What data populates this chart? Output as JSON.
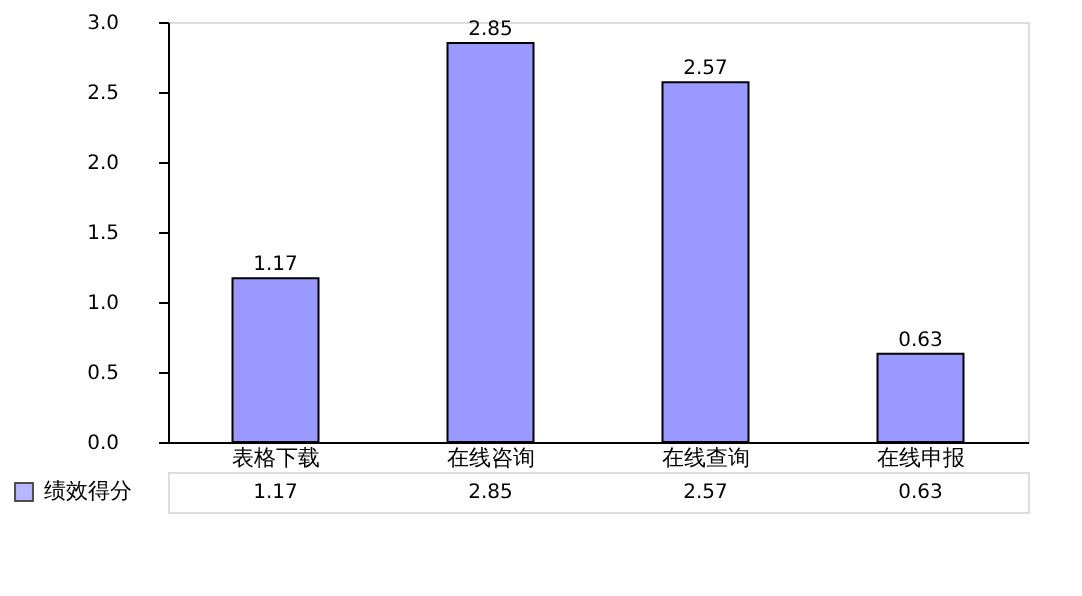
{
  "chart_data": {
    "type": "bar",
    "categories": [
      "表格下载",
      "在线咨询",
      "在线查询",
      "在线申报"
    ],
    "series": [
      {
        "name": "绩效得分",
        "color": "#9999ff",
        "values": [
          1.17,
          2.85,
          2.57,
          0.63
        ],
        "value_labels": [
          "1.17",
          "2.85",
          "2.57",
          "0.63"
        ]
      }
    ],
    "ylim": [
      0,
      3.0
    ],
    "yticks": [
      {
        "value": 0,
        "label": "0.0"
      },
      0.5,
      {
        "value": 1,
        "label": "1.0"
      },
      1.5,
      {
        "value": 2,
        "label": "2.0"
      },
      2.5,
      {
        "value": 3,
        "label": "3.0"
      }
    ],
    "data_labels": true,
    "annotations": [
      "1.17",
      "2.85",
      "2.57",
      "0.63"
    ],
    "grid": false,
    "legend": "bottom left"
  }
}
